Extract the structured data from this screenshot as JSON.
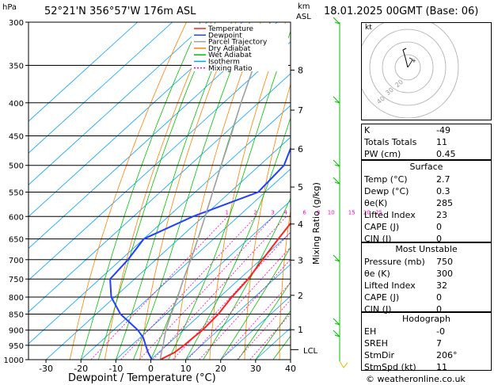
{
  "header": {
    "hpa_label": "hPa",
    "location": "52°21'N  356°57'W  176m  ASL",
    "km_label": "km",
    "asl_label": "ASL",
    "datetime": "18.01.2025  00GMT  (Base: 06)"
  },
  "axis": {
    "xlabel": "Dewpoint / Temperature (°C)",
    "mixing_ratio_label": "Mixing Ratio (g/kg)",
    "lcl_label": "LCL",
    "pressure_ticks": [
      "300",
      "350",
      "400",
      "450",
      "500",
      "550",
      "600",
      "650",
      "700",
      "750",
      "800",
      "850",
      "900",
      "950",
      "1000"
    ],
    "temp_ticks": [
      "-30",
      "-20",
      "-10",
      "0",
      "10",
      "20",
      "30",
      "40"
    ],
    "km_ticks": [
      "1",
      "2",
      "3",
      "4",
      "5",
      "6",
      "7",
      "8"
    ],
    "mixing_ratio_ticks": [
      "1",
      "2",
      "3",
      "4",
      "6",
      "8",
      "10",
      "15",
      "20",
      "25"
    ]
  },
  "legend": [
    {
      "name": "Temperature",
      "color": "#ff2020"
    },
    {
      "name": "Dewpoint",
      "color": "#2040ff"
    },
    {
      "name": "Parcel Trajectory",
      "color": "#a0a0a0"
    },
    {
      "name": "Dry Adiabat",
      "color": "#ff8000"
    },
    {
      "name": "Wet Adiabat",
      "color": "#00c000"
    },
    {
      "name": "Isotherm",
      "color": "#00a0ff"
    },
    {
      "name": "Mixing Ratio",
      "color": "#ff00c0"
    }
  ],
  "chart_data": {
    "type": "line",
    "pressure_range_hpa": [
      300,
      1000
    ],
    "temperature_range_c": [
      -35,
      40
    ],
    "y_scale": "log",
    "series": [
      {
        "name": "Temperature",
        "color": "#ff2020",
        "points": [
          [
            1000,
            2.7
          ],
          [
            975,
            4.5
          ],
          [
            950,
            5
          ],
          [
            925,
            5.2
          ],
          [
            900,
            5.5
          ],
          [
            850,
            5
          ],
          [
            800,
            3.5
          ],
          [
            750,
            2.5
          ],
          [
            700,
            0.5
          ],
          [
            650,
            -1.5
          ],
          [
            600,
            -3.5
          ],
          [
            550,
            -8
          ],
          [
            500,
            -13
          ],
          [
            450,
            -18
          ],
          [
            400,
            -24
          ],
          [
            350,
            -32
          ],
          [
            300,
            -40
          ]
        ]
      },
      {
        "name": "Dewpoint",
        "color": "#2040ff",
        "points": [
          [
            1000,
            0.3
          ],
          [
            975,
            -3
          ],
          [
            950,
            -6
          ],
          [
            925,
            -9
          ],
          [
            900,
            -13
          ],
          [
            850,
            -23
          ],
          [
            800,
            -31
          ],
          [
            750,
            -37
          ],
          [
            700,
            -38
          ],
          [
            650,
            -40
          ],
          [
            600,
            -33
          ],
          [
            550,
            -22
          ],
          [
            500,
            -23
          ],
          [
            450,
            -29
          ],
          [
            400,
            -36
          ],
          [
            350,
            -43
          ],
          [
            300,
            -50
          ]
        ]
      },
      {
        "name": "Parcel Trajectory",
        "color": "#a0a0a0",
        "points": [
          [
            1000,
            2.7
          ],
          [
            975,
            0.8
          ],
          [
            950,
            -1
          ],
          [
            900,
            -5
          ],
          [
            850,
            -8.5
          ],
          [
            800,
            -12
          ],
          [
            750,
            -16
          ],
          [
            700,
            -20
          ],
          [
            650,
            -24.5
          ],
          [
            600,
            -29.5
          ],
          [
            550,
            -35
          ],
          [
            500,
            -41
          ],
          [
            450,
            -47.5
          ],
          [
            400,
            -55
          ],
          [
            350,
            -63
          ],
          [
            300,
            -72
          ]
        ]
      }
    ],
    "lcl_hpa": 965
  },
  "indices": {
    "k_label": "K",
    "k": "-49",
    "tt_label": "Totals Totals",
    "tt": "11",
    "pw_label": "PW (cm)",
    "pw": "0.45"
  },
  "surface": {
    "title": "Surface",
    "temp_label": "Temp (°C)",
    "temp": "2.7",
    "dewp_label": "Dewp (°C)",
    "dewp": "0.3",
    "theta_label": "θe(K)",
    "theta": "285",
    "li_label": "Lifted Index",
    "li": "23",
    "cape_label": "CAPE (J)",
    "cape": "0",
    "cin_label": "CIN (J)",
    "cin": "0"
  },
  "unstable": {
    "title": "Most Unstable",
    "pres_label": "Pressure (mb)",
    "pres": "750",
    "theta_label": "θe (K)",
    "theta": "300",
    "li_label": "Lifted Index",
    "li": "32",
    "cape_label": "CAPE (J)",
    "cape": "0",
    "cin_label": "CIN (J)",
    "cin": "0"
  },
  "hodograph_table": {
    "title": "Hodograph",
    "eh_label": "EH",
    "eh": "-0",
    "sreh_label": "SREH",
    "sreh": "7",
    "dir_label": "StmDir",
    "dir": "206°",
    "spd_label": "StmSpd (kt)",
    "spd": "11"
  },
  "hodograph": {
    "kt_label": "kt",
    "ring_labels": [
      "20",
      "30",
      "40"
    ]
  },
  "copyright": "© weatheronline.co.uk"
}
